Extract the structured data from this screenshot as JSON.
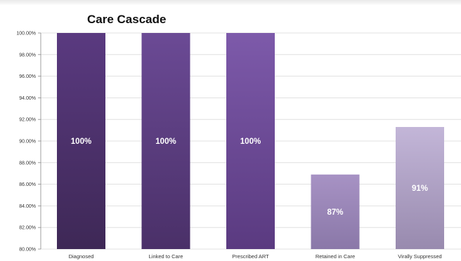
{
  "chart_data": {
    "type": "bar",
    "title": "Care Cascade",
    "xlabel": "",
    "ylabel": "",
    "categories": [
      "Diagnosed",
      "Linked to Care",
      "Prescribed ART",
      "Retained in Care",
      "Virally Suppressed"
    ],
    "values": [
      100,
      100,
      100,
      86.9,
      91.3
    ],
    "data_labels": [
      "100%",
      "100%",
      "100%",
      "87%",
      "91%"
    ],
    "ylim": [
      80,
      100
    ],
    "yticks": [
      80,
      82,
      84,
      86,
      88,
      90,
      92,
      94,
      96,
      98,
      100
    ],
    "ytick_labels": [
      "80.00%",
      "82.00%",
      "84.00%",
      "86.00%",
      "88.00%",
      "90.00%",
      "92.00%",
      "94.00%",
      "96.00%",
      "98.00%",
      "100.00%"
    ],
    "grid": true,
    "legend": "none",
    "colors": {
      "dark_top": "#5a3a80",
      "dark_bottom": "#3e2856",
      "mid_top": "#6b4a95",
      "mid_bottom": "#4a3068",
      "bright_top": "#7d5aaa",
      "bright_bottom": "#5a3a80",
      "light_top": "#a792c4",
      "light_bottom": "#8a78a8",
      "pale_top": "#c3b6d8",
      "pale_bottom": "#988aae"
    }
  }
}
